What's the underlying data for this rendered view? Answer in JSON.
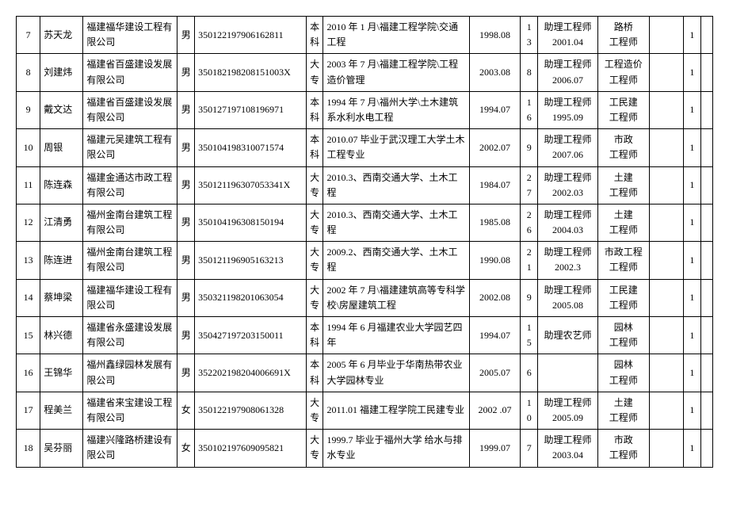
{
  "rows": [
    {
      "idx": "7",
      "name": "苏天龙",
      "company": "福建福华建设工程有限公司",
      "sex": "男",
      "idnum": "350122197906162811",
      "edu": "本科",
      "desc": "2010 年 1 月\\福建工程学院\\交通工程",
      "date": "1998.08",
      "n1": "1\n3",
      "cert": "助理工程师\n2001.04",
      "title": "路桥\n工程师",
      "n2": "1"
    },
    {
      "idx": "8",
      "name": "刘建炜",
      "company": "福建省百盛建设发展有限公司",
      "sex": "男",
      "idnum": "350182198208151003X",
      "edu": "大专",
      "desc": "2003 年 7 月\\福建工程学院\\工程造价管理",
      "date": "2003.08",
      "n1": "8",
      "cert": "助理工程师\n2006.07",
      "title": "工程造价  工程师",
      "n2": "1"
    },
    {
      "idx": "9",
      "name": "戴文达",
      "company": "福建省百盛建设发展有限公司",
      "sex": "男",
      "idnum": "350127197108196971",
      "edu": "本科",
      "desc": "1994 年 7 月\\福州大学\\土木建筑系水利水电工程",
      "date": "1994.07",
      "n1": "1\n6",
      "cert": "助理工程师\n1995.09",
      "title": "工民建\n工程师",
      "n2": "1"
    },
    {
      "idx": "10",
      "name": "周银",
      "company": "福建元吴建筑工程有限公司",
      "sex": "男",
      "idnum": "350104198310071574",
      "edu": "本科",
      "desc": "2010.07 毕业于武汉理工大学土木工程专业",
      "date": "2002.07",
      "n1": "9",
      "cert": "助理工程师\n2007.06",
      "title": "市政\n工程师",
      "n2": "1"
    },
    {
      "idx": "11",
      "name": "陈连森",
      "company": "福建金通达市政工程有限公司",
      "sex": "男",
      "idnum": "350121196307053341X",
      "edu": "大专",
      "desc": "2010.3、西南交通大学、土木工程",
      "date": "1984.07",
      "n1": "2\n7",
      "cert": "助理工程师\n2002.03",
      "title": "土建\n工程师",
      "n2": "1"
    },
    {
      "idx": "12",
      "name": "江清勇",
      "company": "福州金南台建筑工程有限公司",
      "sex": "男",
      "idnum": "350104196308150194",
      "edu": "大专",
      "desc": "2010.3、西南交通大学、土木工程",
      "date": "1985.08",
      "n1": "2\n6",
      "cert": "助理工程师\n2004.03",
      "title": "土建\n工程师",
      "n2": "1"
    },
    {
      "idx": "13",
      "name": "陈连进",
      "company": "福州金南台建筑工程有限公司",
      "sex": "男",
      "idnum": "350121196905163213",
      "edu": "大专",
      "desc": "2009.2、西南交通大学、土木工程",
      "date": "1990.08",
      "n1": "2\n1",
      "cert": "助理工程师\n2002.3",
      "title": "市政工程\n工程师",
      "n2": "1"
    },
    {
      "idx": "14",
      "name": "蔡坤梁",
      "company": "福建福华建设工程有限公司",
      "sex": "男",
      "idnum": "350321198201063054",
      "edu": "大专",
      "desc": "2002 年 7 月\\福建建筑高等专科学校\\房屋建筑工程",
      "date": "2002.08",
      "n1": "9",
      "cert": "助理工程师\n2005.08",
      "title": "工民建\n工程师",
      "n2": "1"
    },
    {
      "idx": "15",
      "name": "林兴德",
      "company": "福建省永盛建设发展有限公司",
      "sex": "男",
      "idnum": "350427197203150011",
      "edu": "本科",
      "desc": "1994 年 6 月福建农业大学园艺四年",
      "date": "1994.07",
      "n1": "1\n5",
      "cert": "助理农艺师",
      "title": "园林\n工程师",
      "n2": "1"
    },
    {
      "idx": "16",
      "name": "王锦华",
      "company": "福州鑫绿园林发展有限公司",
      "sex": "男",
      "idnum": "352202198204006691X",
      "edu": "本科",
      "desc": "2005 年 6 月毕业于华南热带农业大学园林专业",
      "date": "2005.07",
      "n1": "6",
      "cert": "",
      "title": "园林\n工程师",
      "n2": "1"
    },
    {
      "idx": "17",
      "name": "程美兰",
      "company": "福建省来宝建设工程有限公司",
      "sex": "女",
      "idnum": "350122197908061328",
      "edu": "大专",
      "desc": "2011.01 福建工程学院工民建专业",
      "date": "2002 .07",
      "n1": "1\n0",
      "cert": "助理工程师\n2005.09",
      "title": "土建\n工程师",
      "n2": "1"
    },
    {
      "idx": "18",
      "name": "吴芬丽",
      "company": "福建兴隆路桥建设有限公司",
      "sex": "女",
      "idnum": "350102197609095821",
      "edu": "大专",
      "desc": "1999.7 毕业于福州大学  给水与排水专业",
      "date": "1999.07",
      "n1": "7",
      "cert": "助理工程师\n2003.04",
      "title": "市政\n工程师",
      "n2": "1"
    }
  ]
}
